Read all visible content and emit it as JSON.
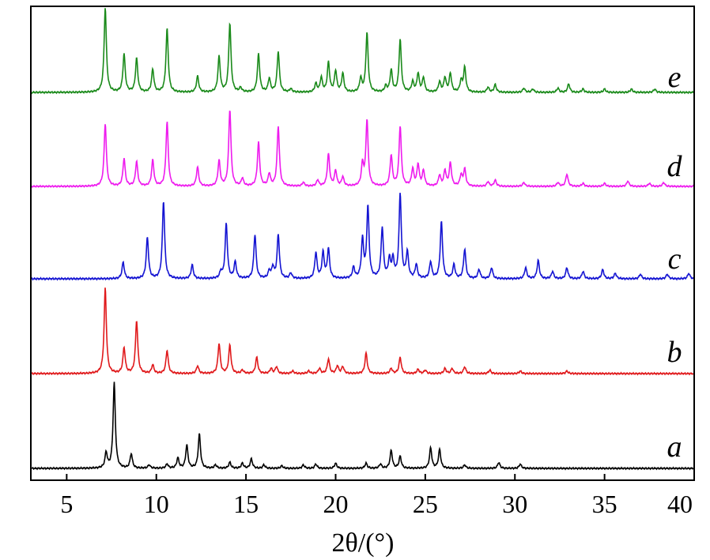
{
  "chart_data": {
    "type": "line",
    "xlabel": "2θ/(°)",
    "ylabel": "",
    "xlim": [
      3,
      40
    ],
    "xticks": [
      5,
      10,
      15,
      20,
      25,
      30,
      35,
      40
    ],
    "y_ticks_shown": false,
    "grid": false,
    "legend": "labels at right end of each trace",
    "series": [
      {
        "name": "a",
        "color": "#000000",
        "peaks": [
          [
            7.2,
            0.18
          ],
          [
            7.65,
            1.0
          ],
          [
            8.6,
            0.17
          ],
          [
            9.6,
            0.04
          ],
          [
            10.6,
            0.05
          ],
          [
            11.2,
            0.12
          ],
          [
            11.7,
            0.27
          ],
          [
            12.4,
            0.4
          ],
          [
            13.3,
            0.04
          ],
          [
            14.1,
            0.07
          ],
          [
            14.8,
            0.06
          ],
          [
            15.3,
            0.11
          ],
          [
            16.0,
            0.04
          ],
          [
            17.0,
            0.03
          ],
          [
            18.2,
            0.04
          ],
          [
            18.9,
            0.05
          ],
          [
            20.0,
            0.06
          ],
          [
            21.7,
            0.06
          ],
          [
            22.5,
            0.05
          ],
          [
            23.1,
            0.21
          ],
          [
            23.6,
            0.14
          ],
          [
            25.3,
            0.24
          ],
          [
            25.8,
            0.22
          ],
          [
            27.2,
            0.04
          ],
          [
            29.1,
            0.07
          ],
          [
            30.3,
            0.05
          ]
        ]
      },
      {
        "name": "b",
        "color": "#e0191b",
        "peaks": [
          [
            7.15,
            1.0
          ],
          [
            8.2,
            0.3
          ],
          [
            8.9,
            0.62
          ],
          [
            9.8,
            0.1
          ],
          [
            10.6,
            0.27
          ],
          [
            12.3,
            0.09
          ],
          [
            13.5,
            0.35
          ],
          [
            14.1,
            0.33
          ],
          [
            14.8,
            0.04
          ],
          [
            15.6,
            0.19
          ],
          [
            16.4,
            0.06
          ],
          [
            16.7,
            0.08
          ],
          [
            17.6,
            0.03
          ],
          [
            18.5,
            0.03
          ],
          [
            19.1,
            0.06
          ],
          [
            19.6,
            0.17
          ],
          [
            20.1,
            0.09
          ],
          [
            20.4,
            0.08
          ],
          [
            21.7,
            0.24
          ],
          [
            23.1,
            0.06
          ],
          [
            23.6,
            0.19
          ],
          [
            24.6,
            0.05
          ],
          [
            25.0,
            0.04
          ],
          [
            26.1,
            0.06
          ],
          [
            26.5,
            0.06
          ],
          [
            27.2,
            0.08
          ],
          [
            28.6,
            0.04
          ],
          [
            30.3,
            0.03
          ],
          [
            32.9,
            0.03
          ]
        ]
      },
      {
        "name": "c",
        "color": "#1414d2",
        "peaks": [
          [
            8.15,
            0.18
          ],
          [
            9.5,
            0.45
          ],
          [
            10.4,
            0.85
          ],
          [
            12.0,
            0.15
          ],
          [
            13.6,
            0.07
          ],
          [
            13.9,
            0.6
          ],
          [
            14.4,
            0.18
          ],
          [
            15.5,
            0.48
          ],
          [
            16.3,
            0.08
          ],
          [
            16.5,
            0.12
          ],
          [
            16.8,
            0.48
          ],
          [
            17.5,
            0.06
          ],
          [
            18.9,
            0.28
          ],
          [
            19.3,
            0.28
          ],
          [
            19.6,
            0.32
          ],
          [
            21.0,
            0.12
          ],
          [
            21.5,
            0.42
          ],
          [
            21.8,
            0.78
          ],
          [
            22.6,
            0.55
          ],
          [
            23.0,
            0.2
          ],
          [
            23.2,
            0.2
          ],
          [
            23.6,
            0.92
          ],
          [
            24.0,
            0.28
          ],
          [
            24.5,
            0.15
          ],
          [
            25.3,
            0.18
          ],
          [
            25.9,
            0.62
          ],
          [
            26.6,
            0.15
          ],
          [
            27.2,
            0.32
          ],
          [
            28.0,
            0.1
          ],
          [
            28.7,
            0.12
          ],
          [
            30.6,
            0.12
          ],
          [
            31.3,
            0.2
          ],
          [
            32.1,
            0.08
          ],
          [
            32.9,
            0.12
          ],
          [
            33.8,
            0.08
          ],
          [
            34.9,
            0.1
          ],
          [
            35.6,
            0.06
          ],
          [
            37.0,
            0.05
          ],
          [
            38.5,
            0.05
          ],
          [
            39.7,
            0.06
          ]
        ]
      },
      {
        "name": "d",
        "color": "#ee1bee",
        "peaks": [
          [
            7.15,
            0.82
          ],
          [
            8.2,
            0.36
          ],
          [
            8.9,
            0.32
          ],
          [
            9.8,
            0.34
          ],
          [
            10.6,
            0.84
          ],
          [
            12.3,
            0.25
          ],
          [
            13.5,
            0.33
          ],
          [
            14.1,
            1.0
          ],
          [
            14.8,
            0.1
          ],
          [
            15.7,
            0.57
          ],
          [
            16.3,
            0.16
          ],
          [
            16.8,
            0.78
          ],
          [
            18.2,
            0.05
          ],
          [
            19.0,
            0.08
          ],
          [
            19.6,
            0.42
          ],
          [
            20.0,
            0.2
          ],
          [
            20.4,
            0.12
          ],
          [
            21.5,
            0.28
          ],
          [
            21.75,
            0.86
          ],
          [
            23.1,
            0.4
          ],
          [
            23.6,
            0.78
          ],
          [
            24.3,
            0.22
          ],
          [
            24.6,
            0.28
          ],
          [
            24.9,
            0.2
          ],
          [
            25.8,
            0.14
          ],
          [
            26.1,
            0.2
          ],
          [
            26.4,
            0.3
          ],
          [
            27.0,
            0.14
          ],
          [
            27.2,
            0.22
          ],
          [
            28.5,
            0.06
          ],
          [
            28.9,
            0.08
          ],
          [
            30.5,
            0.05
          ],
          [
            32.4,
            0.05
          ],
          [
            32.9,
            0.16
          ],
          [
            33.8,
            0.04
          ],
          [
            35.0,
            0.04
          ],
          [
            36.3,
            0.07
          ],
          [
            37.5,
            0.04
          ],
          [
            38.3,
            0.05
          ]
        ]
      },
      {
        "name": "e",
        "color": "#1a8a1a",
        "peaks": [
          [
            7.15,
            1.0
          ],
          [
            8.2,
            0.45
          ],
          [
            8.9,
            0.4
          ],
          [
            9.8,
            0.27
          ],
          [
            10.6,
            0.75
          ],
          [
            12.3,
            0.19
          ],
          [
            13.5,
            0.42
          ],
          [
            14.1,
            0.81
          ],
          [
            14.7,
            0.05
          ],
          [
            15.7,
            0.45
          ],
          [
            16.3,
            0.16
          ],
          [
            16.8,
            0.48
          ],
          [
            17.5,
            0.04
          ],
          [
            18.9,
            0.1
          ],
          [
            19.2,
            0.17
          ],
          [
            19.6,
            0.35
          ],
          [
            20.0,
            0.25
          ],
          [
            20.4,
            0.22
          ],
          [
            21.4,
            0.16
          ],
          [
            21.75,
            0.7
          ],
          [
            22.8,
            0.07
          ],
          [
            23.1,
            0.26
          ],
          [
            23.6,
            0.62
          ],
          [
            24.3,
            0.12
          ],
          [
            24.6,
            0.22
          ],
          [
            24.9,
            0.17
          ],
          [
            25.8,
            0.12
          ],
          [
            26.1,
            0.17
          ],
          [
            26.4,
            0.22
          ],
          [
            27.0,
            0.13
          ],
          [
            27.2,
            0.29
          ],
          [
            28.5,
            0.06
          ],
          [
            28.9,
            0.09
          ],
          [
            30.5,
            0.05
          ],
          [
            31.0,
            0.04
          ],
          [
            32.4,
            0.05
          ],
          [
            33.0,
            0.1
          ],
          [
            33.8,
            0.04
          ],
          [
            35.0,
            0.04
          ],
          [
            36.5,
            0.04
          ],
          [
            37.8,
            0.04
          ]
        ]
      }
    ]
  }
}
